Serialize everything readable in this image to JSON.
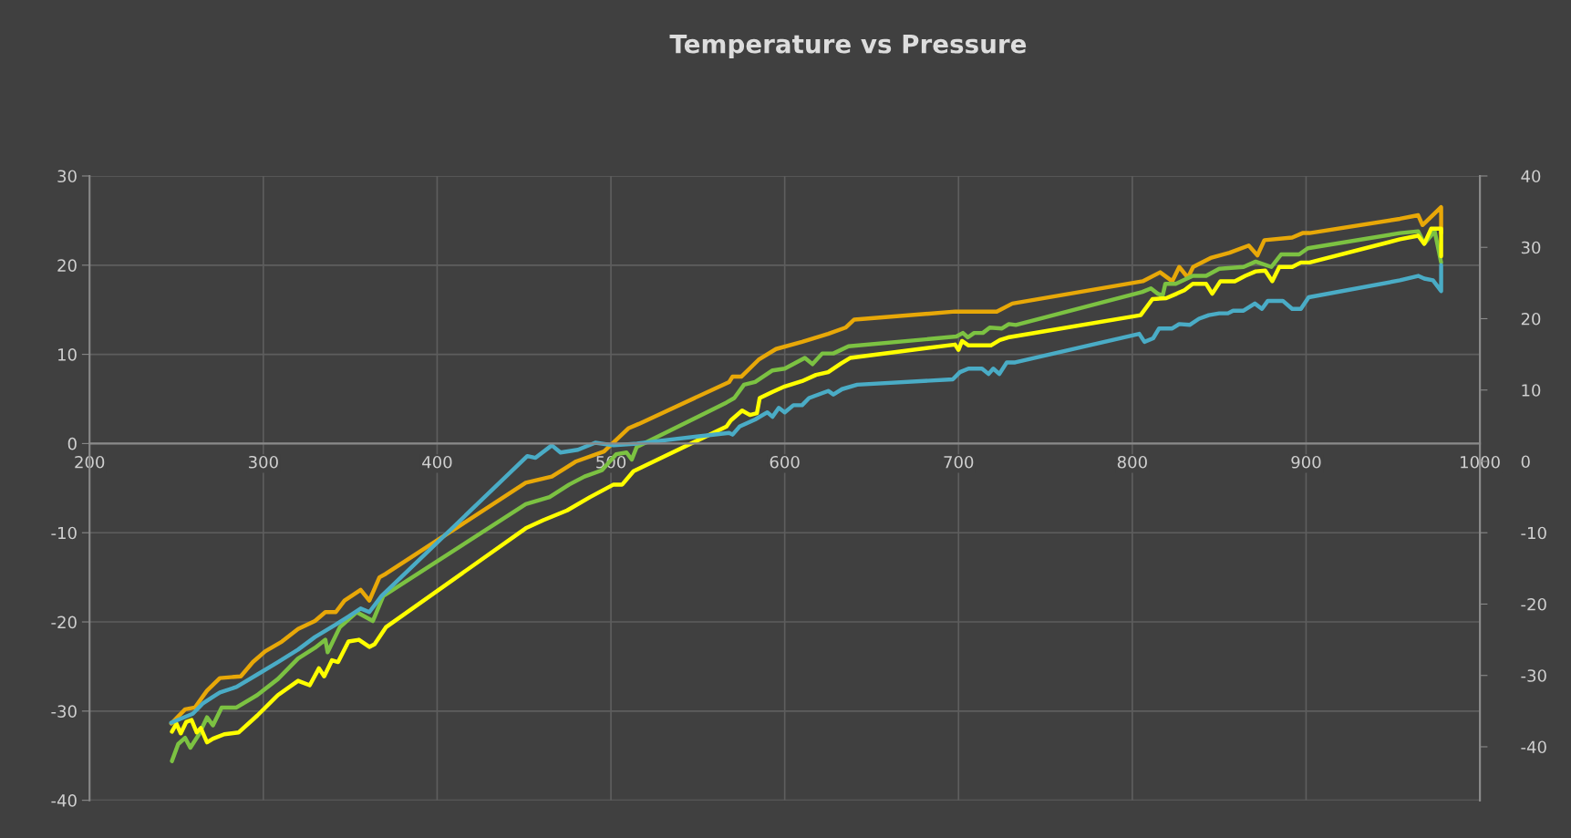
{
  "chart_data": {
    "type": "line",
    "title": "Temperature vs Pressure",
    "xlim": [
      200,
      1000
    ],
    "xticks": [
      200,
      300,
      400,
      500,
      600,
      700,
      800,
      900,
      1000
    ],
    "ylim": [
      -40,
      30
    ],
    "yticks": [
      -40,
      -30,
      -20,
      -10,
      0,
      10,
      20,
      30
    ],
    "y2lim": [
      -47.5,
      40
    ],
    "y2ticks": [
      -40,
      -30,
      -20,
      -10,
      0,
      10,
      20,
      30,
      40
    ],
    "grid": true,
    "series": [
      {
        "color": "#e8a808",
        "x": [
          247,
          255,
          260.6,
          267.6,
          275,
          287,
          294,
          301,
          310.7,
          320,
          329.7,
          335.7,
          341.7,
          346.7,
          356,
          361,
          366.8,
          370.5,
          451,
          466,
          480,
          496,
          510,
          516,
          568,
          570,
          575,
          585,
          595,
          610,
          625,
          635,
          640,
          698,
          722,
          731,
          806,
          816,
          823,
          827,
          832,
          835,
          845,
          856,
          867,
          872,
          876,
          892,
          898,
          902,
          954,
          964.5,
          967,
          977.7,
          977.7
        ],
        "values": [
          -31.4,
          -29.8,
          -29.6,
          -27.7,
          -26.3,
          -26.1,
          -24.5,
          -23.3,
          -22.2,
          -20.8,
          -19.9,
          -18.9,
          -18.9,
          -17.6,
          -16.4,
          -17.6,
          -15.0,
          -14.6,
          -4.4,
          -3.7,
          -2.0,
          -0.9,
          1.7,
          2.2,
          6.9,
          7.5,
          7.5,
          9.4,
          10.6,
          11.4,
          12.3,
          13.0,
          13.9,
          14.8,
          14.8,
          15.7,
          18.2,
          19.2,
          18.2,
          19.8,
          18.6,
          19.8,
          20.8,
          21.4,
          22.2,
          21.1,
          22.8,
          23.1,
          23.6,
          23.6,
          25.2,
          25.6,
          24.5,
          26.5,
          23.6
        ]
      },
      {
        "color": "#7cc242",
        "x": [
          247.4,
          251,
          255,
          258,
          263,
          267.6,
          271,
          276,
          284.5,
          296.5,
          308.4,
          320,
          329.7,
          335.7,
          337,
          344,
          353.7,
          363,
          369,
          451,
          464.7,
          476,
          484.8,
          494.8,
          503,
          509,
          512,
          514.8,
          566.5,
          571,
          576.6,
          583,
          593,
          600,
          611.6,
          616,
          621.6,
          628,
          636.7,
          698.8,
          702.5,
          705.4,
          709,
          714,
          718,
          725,
          729,
          733,
          805.8,
          810.7,
          814.6,
          817.5,
          819,
          825,
          834.8,
          842.5,
          850,
          864,
          871,
          880,
          885.6,
          896,
          901,
          954,
          964.5,
          968,
          974,
          977.7
        ],
        "values": [
          -35.6,
          -33.7,
          -33.0,
          -34.1,
          -32.6,
          -30.7,
          -31.6,
          -29.6,
          -29.6,
          -28.2,
          -26.4,
          -24.1,
          -22.9,
          -22.0,
          -23.4,
          -20.6,
          -18.9,
          -19.9,
          -17.1,
          -6.8,
          -6.0,
          -4.6,
          -3.7,
          -3.0,
          -1.2,
          -1.0,
          -1.8,
          -0.4,
          4.6,
          5.1,
          6.6,
          6.9,
          8.2,
          8.4,
          9.6,
          8.9,
          10.1,
          10.1,
          10.9,
          12.0,
          12.4,
          11.9,
          12.4,
          12.4,
          13.0,
          12.9,
          13.4,
          13.3,
          17.0,
          17.4,
          16.8,
          16.6,
          17.9,
          17.9,
          18.8,
          18.8,
          19.6,
          19.8,
          20.4,
          19.8,
          21.2,
          21.2,
          21.9,
          23.6,
          23.8,
          22.4,
          23.8,
          20.3
        ]
      },
      {
        "color": "#ffff00",
        "x": [
          247.4,
          250,
          252.5,
          255.7,
          258.7,
          261.7,
          264,
          267.6,
          271,
          277.5,
          285.7,
          296.5,
          308.4,
          320,
          326.7,
          332,
          335,
          339.5,
          343,
          349,
          355,
          361,
          364,
          370.5,
          451,
          461,
          474.8,
          488,
          501.5,
          506.5,
          513,
          566.5,
          569,
          575.5,
          580,
          584,
          585.6,
          593,
          600,
          610,
          618,
          625,
          632.6,
          637.6,
          698,
          700,
          702,
          705.8,
          718.6,
          723.8,
          728.5,
          804.8,
          811.6,
          819.5,
          825.5,
          830,
          834.8,
          842.5,
          846,
          850.7,
          859,
          865,
          871,
          876.5,
          880.5,
          884.6,
          892,
          897,
          902,
          954,
          964.5,
          968,
          972,
          977.7,
          977.7
        ],
        "values": [
          -32.3,
          -31.4,
          -32.5,
          -31.2,
          -31.0,
          -32.4,
          -31.9,
          -33.5,
          -33.1,
          -32.6,
          -32.4,
          -30.5,
          -28.2,
          -26.6,
          -27.1,
          -25.2,
          -26.1,
          -24.3,
          -24.5,
          -22.2,
          -22.0,
          -22.8,
          -22.5,
          -20.6,
          -9.5,
          -8.6,
          -7.5,
          -6.0,
          -4.6,
          -4.6,
          -3.1,
          1.9,
          2.6,
          3.7,
          3.2,
          3.4,
          5.1,
          5.8,
          6.4,
          7.0,
          7.7,
          8.0,
          9.0,
          9.6,
          11.1,
          10.5,
          11.5,
          11.0,
          11.0,
          11.6,
          11.9,
          14.4,
          16.2,
          16.3,
          16.8,
          17.2,
          17.9,
          17.9,
          16.8,
          18.2,
          18.2,
          18.8,
          19.3,
          19.4,
          18.2,
          19.8,
          19.8,
          20.3,
          20.3,
          22.9,
          23.3,
          22.4,
          24.1,
          24.1,
          21.0
        ]
      },
      {
        "color": "#4aacc6",
        "x": [
          247,
          259.4,
          265.4,
          275,
          284.5,
          296.5,
          308.4,
          320,
          329.7,
          341.7,
          349,
          356,
          361,
          368,
          451.9,
          456.6,
          466,
          471,
          481,
          491,
          501.5,
          515,
          568,
          570,
          574,
          583,
          590,
          593,
          596.6,
          600,
          605,
          610,
          614,
          625,
          628,
          633,
          641.7,
          696.7,
          700.8,
          705.7,
          713.5,
          717.3,
          720,
          723.5,
          727.8,
          732.6,
          804,
          807,
          812,
          815.4,
          823,
          827,
          833,
          838.4,
          844,
          850,
          855,
          858,
          864,
          870.5,
          874.6,
          878,
          886.6,
          892,
          897,
          901.5,
          954,
          964.5,
          968,
          973,
          977.7,
          977.7
        ],
        "values": [
          -31.3,
          -30.3,
          -29.1,
          -27.9,
          -27.3,
          -25.9,
          -24.5,
          -23.1,
          -21.7,
          -20.3,
          -19.4,
          -18.5,
          -18.9,
          -17.1,
          -1.4,
          -1.6,
          -0.2,
          -1.0,
          -0.7,
          0.1,
          -0.2,
          0,
          1.2,
          1.0,
          1.9,
          2.7,
          3.5,
          3.0,
          4.0,
          3.5,
          4.3,
          4.3,
          5.1,
          5.9,
          5.5,
          6.1,
          6.6,
          7.2,
          8.0,
          8.4,
          8.4,
          7.8,
          8.4,
          7.8,
          9.1,
          9.1,
          12.3,
          11.4,
          11.8,
          12.9,
          12.9,
          13.4,
          13.3,
          14.0,
          14.4,
          14.6,
          14.6,
          14.9,
          14.9,
          15.7,
          15.1,
          16.0,
          16.0,
          15.1,
          15.1,
          16.4,
          18.3,
          18.8,
          18.5,
          18.3,
          17.1,
          20.0
        ]
      }
    ]
  }
}
